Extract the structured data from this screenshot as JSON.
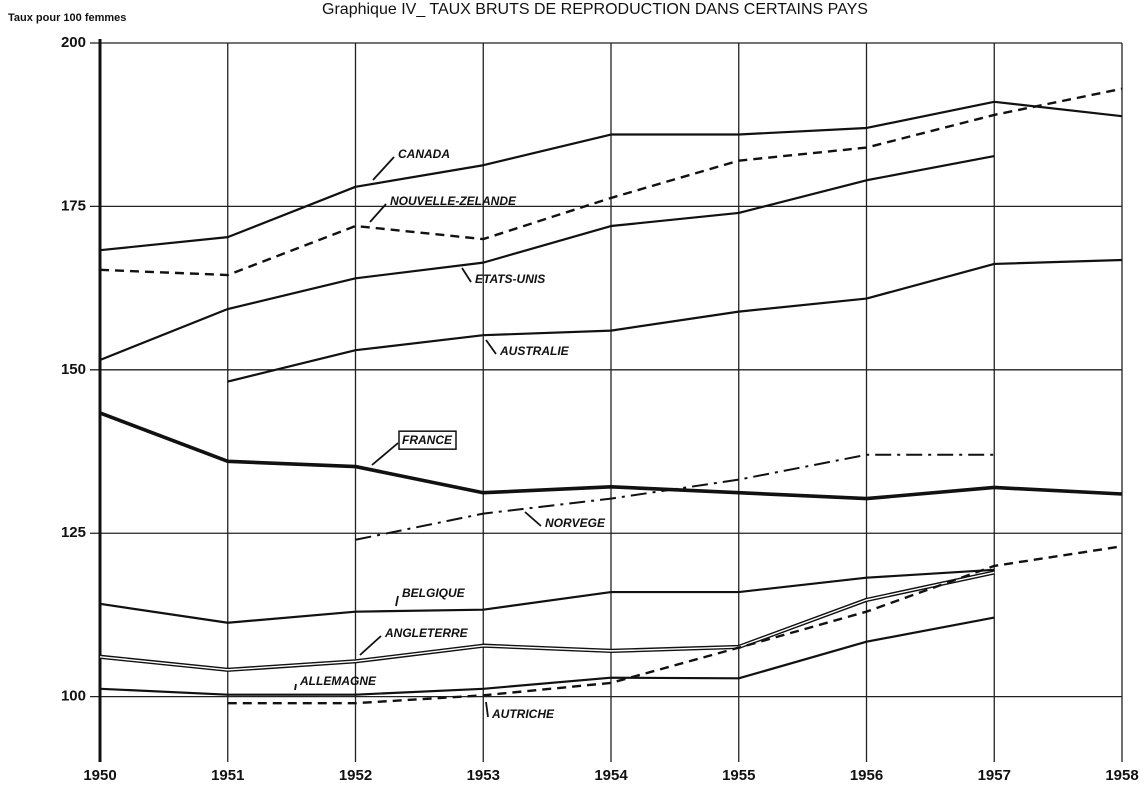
{
  "chart_data": {
    "type": "line",
    "title": "Graphique IV_ TAUX BRUTS DE REPRODUCTION DANS CERTAINS PAYS",
    "y_label": "Taux pour 100 femmes",
    "x": [
      1950,
      1951,
      1952,
      1953,
      1954,
      1955,
      1956,
      1957,
      1958
    ],
    "xlim": [
      1950,
      1958
    ],
    "xticks": [
      1950,
      1951,
      1952,
      1953,
      1954,
      1955,
      1956,
      1957,
      1958
    ],
    "ylim": [
      90,
      200
    ],
    "yticks": [
      100,
      125,
      150,
      175,
      200
    ],
    "grid": true,
    "series": [
      {
        "name": "CANADA",
        "color": "#111111",
        "line_style": "solid",
        "values": [
          168.3,
          170.3,
          178,
          181.3,
          186,
          186,
          187,
          191,
          188.8
        ]
      },
      {
        "name": "NOUVELLE-ZELANDE",
        "color": "#111111",
        "line_style": "dashed",
        "values": [
          165.3,
          164.5,
          172,
          170,
          176.3,
          182,
          184,
          189,
          193
        ]
      },
      {
        "name": "ETATS-UNIS",
        "color": "#111111",
        "line_style": "solid",
        "values": [
          151.5,
          159.3,
          164,
          166.4,
          172,
          174,
          179,
          182.7,
          null
        ]
      },
      {
        "name": "AUSTRALIE",
        "color": "#111111",
        "line_style": "solid",
        "values": [
          null,
          148.2,
          153,
          155.3,
          156,
          158.9,
          160.9,
          166.2,
          166.8
        ]
      },
      {
        "name": "FRANCE",
        "color": "#111111",
        "line_style": "thick",
        "values": [
          143.4,
          136,
          135.2,
          131.2,
          132.1,
          131.2,
          130.3,
          132,
          131
        ]
      },
      {
        "name": "NORVEGE",
        "color": "#111111",
        "line_style": "dashdot",
        "values": [
          null,
          null,
          124,
          128,
          130.3,
          133.2,
          137,
          137,
          null
        ]
      },
      {
        "name": "BELGIQUE",
        "color": "#111111",
        "line_style": "solid",
        "values": [
          114.2,
          111.3,
          113,
          113.3,
          116,
          116,
          118.2,
          119.4,
          null
        ]
      },
      {
        "name": "ANGLETERRE",
        "color": "#111111",
        "line_style": "double",
        "values": [
          106.1,
          104.1,
          105.4,
          107.8,
          107,
          107.6,
          114.8,
          119,
          null
        ]
      },
      {
        "name": "ALLEMAGNE",
        "color": "#111111",
        "line_style": "solid",
        "values": [
          101.2,
          100.3,
          100.3,
          101.2,
          102.9,
          102.8,
          108.4,
          112.1,
          null
        ]
      },
      {
        "name": "AUTRICHE",
        "color": "#111111",
        "line_style": "dashed",
        "values": [
          null,
          99,
          99,
          100.2,
          102.1,
          107.5,
          113,
          120,
          123
        ]
      }
    ]
  }
}
